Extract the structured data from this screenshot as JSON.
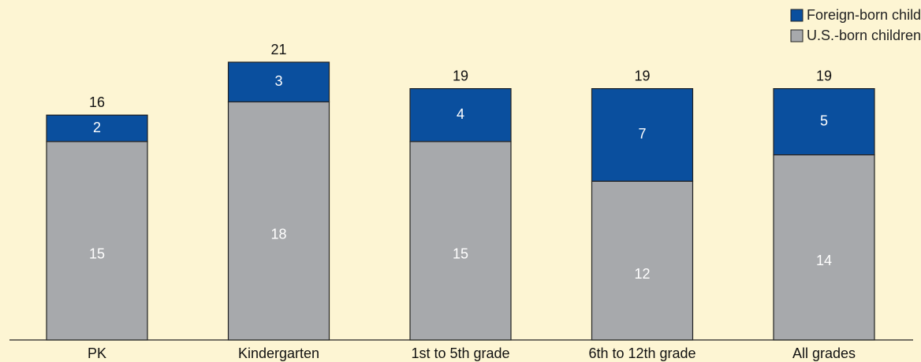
{
  "chart_data": {
    "type": "stacked_bar",
    "categories": [
      "PK",
      "Kindergarten",
      "1st to 5th grade",
      "6th to 12th grade",
      "All grades"
    ],
    "series": [
      {
        "name": "U.S.-born children with immigrant parents",
        "color": "#a7a9ac",
        "values": [
          15,
          18,
          15,
          12,
          14
        ]
      },
      {
        "name": "Foreign-born children",
        "color": "#0a4f9e",
        "values": [
          2,
          3,
          4,
          7,
          5
        ]
      }
    ],
    "totals": [
      16,
      21,
      19,
      19,
      19
    ],
    "legend": "top-right"
  }
}
